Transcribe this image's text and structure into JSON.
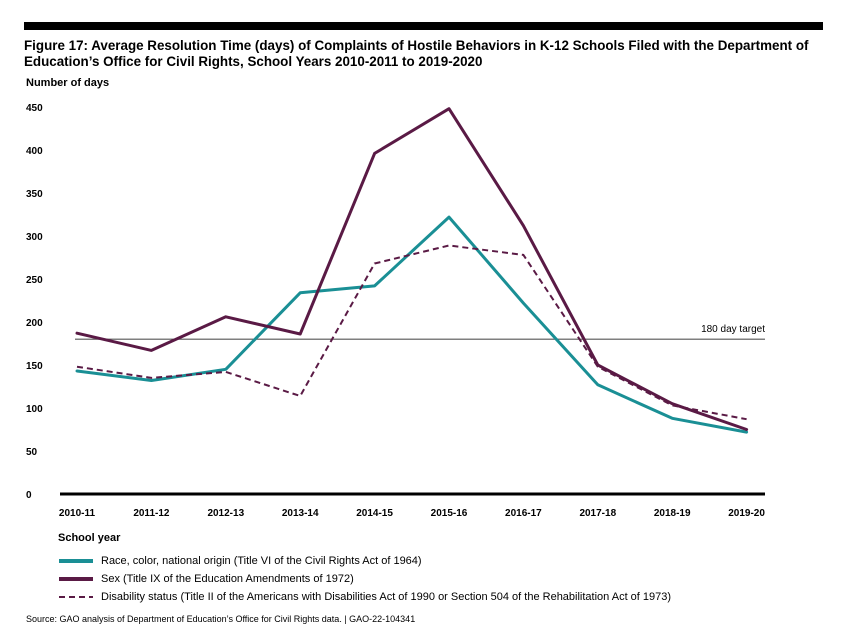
{
  "figure": {
    "title": "Figure 17: Average Resolution Time (days) of Complaints of Hostile Behaviors in K-12 Schools Filed with the Department of Education’s Office for Civil Rights, School Years 2010-2011 to 2019-2020",
    "source": "Source: GAO analysis of Department of Education’s Office for Civil Rights data.  |  GAO-22-104341"
  },
  "chart_data": {
    "type": "line",
    "title": "Figure 17: Average Resolution Time (days) of Complaints of Hostile Behaviors in K-12 Schools Filed with the Department of Education’s Office for Civil Rights, School Years 2010-2011 to 2019-2020",
    "xlabel": "School year",
    "ylabel": "Number of days",
    "ylim": [
      0,
      450
    ],
    "yticks": [
      0,
      50,
      100,
      150,
      200,
      250,
      300,
      350,
      400,
      450
    ],
    "grid": false,
    "categories": [
      "2010-11",
      "2011-12",
      "2012-13",
      "2013-14",
      "2014-15",
      "2015-16",
      "2016-17",
      "2017-18",
      "2018-19",
      "2019-20"
    ],
    "series": [
      {
        "name": "Race, color, national origin (Title VI of the Civil Rights Act of 1964)",
        "color": "#1a8f95",
        "style": "solid",
        "values": [
          143,
          132,
          145,
          234,
          242,
          322,
          222,
          127,
          88,
          72
        ]
      },
      {
        "name": "Sex (Title IX of the Education Amendments of 1972)",
        "color": "#5a1a45",
        "style": "solid",
        "values": [
          187,
          167,
          206,
          186,
          396,
          448,
          312,
          150,
          105,
          75
        ]
      },
      {
        "name": "Disability status (Title II of the Americans with Disabilities Act of 1990 or Section 504 of the Rehabilitation Act of 1973)",
        "color": "#5a1a45",
        "style": "dashed",
        "values": [
          148,
          135,
          142,
          114,
          268,
          289,
          278,
          148,
          103,
          87
        ]
      }
    ],
    "reference_line": {
      "value": 180,
      "label": "180 day target",
      "color": "#555555"
    }
  }
}
